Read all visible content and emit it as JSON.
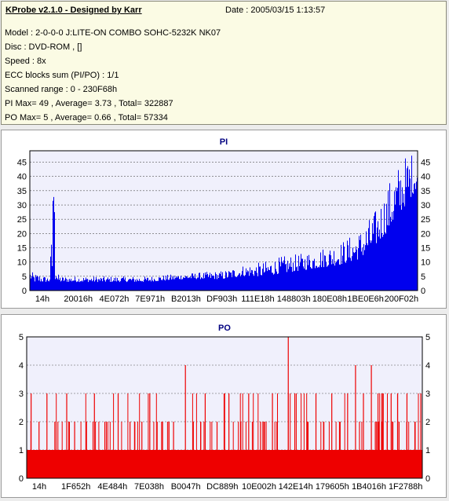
{
  "header": {
    "title": "KProbe v2.1.0 - Designed by Karr",
    "date": "Date : 2005/03/15 1:13:57",
    "lines": [
      "Model : 2-0-0-0 J:LITE-ON COMBO SOHC-5232K NK07",
      "Disc : DVD-ROM ,  []",
      "Speed : 8x",
      "ECC blocks sum (PI/PO) : 1/1",
      "Scanned range : 0 - 230F68h",
      "PI Max= 49 , Average= 3.73 , Total= 322887",
      "PO Max= 5 , Average= 0.66 , Total= 57334"
    ]
  },
  "colors": {
    "pi": "#0000ee",
    "po": "#ee0000",
    "plot_bg": "#f0f0fc",
    "grid": "#555555",
    "info_bg": "#fbfbe4"
  },
  "chart_data": [
    {
      "type": "area",
      "title": "PI",
      "x_unit": "hex address",
      "x_range": [
        "0",
        "230F68h"
      ],
      "ylim": [
        0,
        49
      ],
      "yticks": [
        0,
        5,
        10,
        15,
        20,
        25,
        30,
        35,
        40,
        45
      ],
      "xticks": [
        "14h",
        "20016h",
        "4E072h",
        "7E971h",
        "B2013h",
        "DF903h",
        "111E18h",
        "148803h",
        "180E08h",
        "1BE0E6h",
        "200F02h"
      ],
      "grid": "dashed horizontal",
      "series": [
        {
          "x_fraction": [
            0,
            0.01,
            0.02,
            0.04,
            0.05,
            0.06,
            0.065,
            0.07,
            0.08,
            0.1,
            0.2,
            0.3,
            0.4,
            0.5,
            0.55,
            0.6,
            0.65,
            0.7,
            0.75,
            0.8,
            0.85,
            0.88,
            0.9,
            0.92,
            0.94,
            0.96,
            0.98,
            1.0
          ],
          "base": [
            4,
            3,
            3,
            3,
            3,
            3,
            3,
            3,
            3,
            3,
            3,
            3,
            4,
            4,
            5,
            5,
            6,
            7,
            8,
            9,
            11,
            14,
            17,
            20,
            24,
            28,
            32,
            36
          ],
          "peak": [
            7,
            6,
            6,
            5,
            5,
            35,
            22,
            6,
            5,
            5,
            5,
            5,
            6,
            7,
            9,
            10,
            12,
            13,
            15,
            17,
            21,
            26,
            30,
            36,
            42,
            46,
            49,
            48
          ]
        }
      ]
    },
    {
      "type": "area",
      "title": "PO",
      "x_unit": "hex address",
      "x_range": [
        "0",
        "230F68h"
      ],
      "ylim": [
        0,
        5
      ],
      "yticks": [
        0,
        1,
        2,
        3,
        4,
        5
      ],
      "xticks": [
        "14h",
        "1F652h",
        "4E484h",
        "7E038h",
        "B0047h",
        "DC889h",
        "10E002h",
        "142E14h",
        "179605h",
        "1B4016h",
        "1F2788h"
      ],
      "grid": "dashed horizontal",
      "series": [
        {
          "baseline": 1,
          "spikes": [
            {
              "x": 0.01,
              "v": 3
            },
            {
              "x": 0.03,
              "v": 2
            },
            {
              "x": 0.05,
              "v": 3
            },
            {
              "x": 0.07,
              "v": 2
            },
            {
              "x": 0.1,
              "v": 3
            },
            {
              "x": 0.12,
              "v": 2
            },
            {
              "x": 0.15,
              "v": 2
            },
            {
              "x": 0.17,
              "v": 3
            },
            {
              "x": 0.2,
              "v": 2
            },
            {
              "x": 0.23,
              "v": 3
            },
            {
              "x": 0.26,
              "v": 2
            },
            {
              "x": 0.29,
              "v": 2
            },
            {
              "x": 0.31,
              "v": 3
            },
            {
              "x": 0.34,
              "v": 2
            },
            {
              "x": 0.37,
              "v": 2
            },
            {
              "x": 0.4,
              "v": 4
            },
            {
              "x": 0.42,
              "v": 2
            },
            {
              "x": 0.45,
              "v": 3
            },
            {
              "x": 0.48,
              "v": 2
            },
            {
              "x": 0.51,
              "v": 3
            },
            {
              "x": 0.54,
              "v": 2
            },
            {
              "x": 0.56,
              "v": 3
            },
            {
              "x": 0.59,
              "v": 2
            },
            {
              "x": 0.62,
              "v": 3
            },
            {
              "x": 0.66,
              "v": 5
            },
            {
              "x": 0.68,
              "v": 3
            },
            {
              "x": 0.71,
              "v": 2
            },
            {
              "x": 0.73,
              "v": 3
            },
            {
              "x": 0.75,
              "v": 2
            },
            {
              "x": 0.77,
              "v": 3
            },
            {
              "x": 0.79,
              "v": 2
            },
            {
              "x": 0.81,
              "v": 3
            },
            {
              "x": 0.83,
              "v": 4
            },
            {
              "x": 0.85,
              "v": 3
            },
            {
              "x": 0.87,
              "v": 4
            },
            {
              "x": 0.88,
              "v": 2
            },
            {
              "x": 0.9,
              "v": 3
            },
            {
              "x": 0.92,
              "v": 3
            },
            {
              "x": 0.94,
              "v": 2
            },
            {
              "x": 0.96,
              "v": 3
            },
            {
              "x": 0.98,
              "v": 2
            },
            {
              "x": 0.995,
              "v": 3
            }
          ]
        }
      ]
    }
  ]
}
